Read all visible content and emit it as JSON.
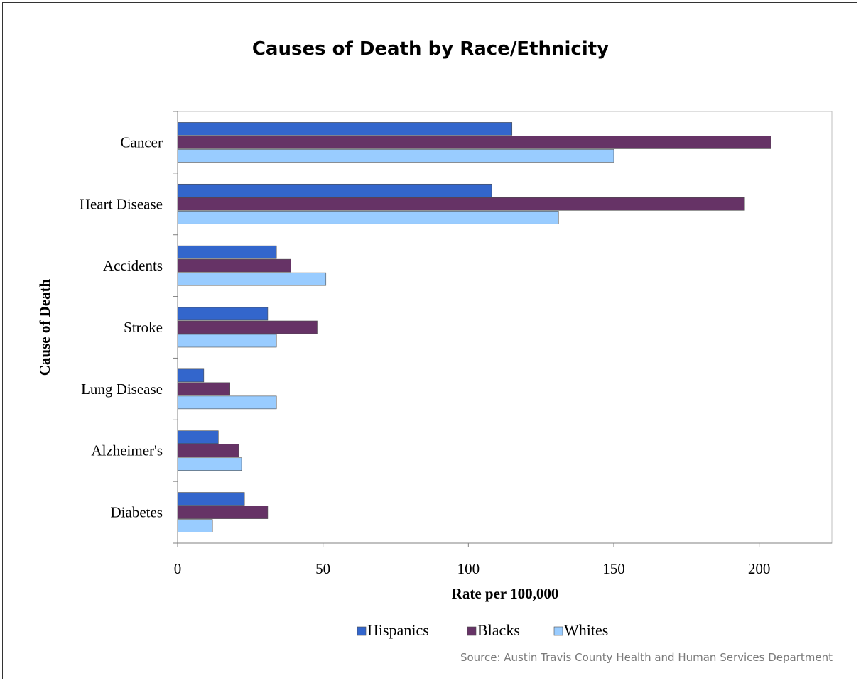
{
  "source": "Source: Austin Travis County Health and Human Services Department",
  "chart_data": {
    "type": "bar",
    "orientation": "horizontal",
    "title": "Causes of Death by Race/Ethnicity",
    "xlabel": "Rate per 100,000",
    "ylabel": "Cause of Death",
    "xlim": [
      0,
      225
    ],
    "xticks": [
      0,
      50,
      100,
      150,
      200
    ],
    "grid": false,
    "legend": "bottom",
    "categories": [
      "Cancer",
      "Heart Disease",
      "Accidents",
      "Stroke",
      "Lung Disease",
      "Alzheimer's",
      "Diabetes"
    ],
    "series": [
      {
        "name": "Hispanics",
        "color": "#3366cc",
        "values": [
          115,
          108,
          34,
          31,
          9,
          14,
          23
        ]
      },
      {
        "name": "Blacks",
        "color": "#663366",
        "values": [
          204,
          195,
          39,
          48,
          18,
          21,
          31
        ]
      },
      {
        "name": "Whites",
        "color": "#99ccff",
        "values": [
          150,
          131,
          51,
          34,
          34,
          22,
          12
        ]
      }
    ]
  }
}
